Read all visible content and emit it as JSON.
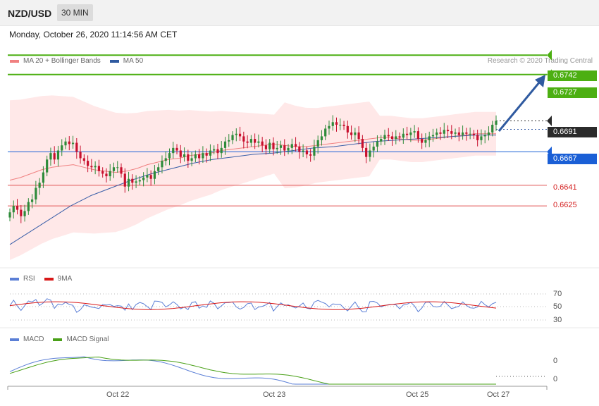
{
  "header": {
    "symbol": "NZD/USD",
    "timeframe": "30 MIN"
  },
  "datetime": "Monday, October 26, 2020 11:14:56 AM CET",
  "copyright": "Research © 2020 Trading Central",
  "colors": {
    "bull": "#2e8b3a",
    "bear": "#c8102e",
    "ma20": "#f08080",
    "bands_fill": "#ffe4e4",
    "ma50": "#3a5fa8",
    "resistance": "#4caf12",
    "pivot": "#1a5fd6",
    "support": "#e05555",
    "last": "#2b2b2b",
    "arrow": "#2f5aa0",
    "rsi": "#5b7fd6",
    "rsi_ma": "#d81818",
    "macd": "#5b7fd6",
    "macd_signal": "#49a017"
  },
  "legends": {
    "price": [
      {
        "label": "MA 20 + Bollinger Bands",
        "color": "#f08080"
      },
      {
        "label": "MA 50",
        "color": "#2f5aa0"
      }
    ],
    "rsi": [
      {
        "label": "RSI",
        "color": "#5b7fd6"
      },
      {
        "label": "9MA",
        "color": "#d81818"
      }
    ],
    "macd": [
      {
        "label": "MACD",
        "color": "#5b7fd6"
      },
      {
        "label": "MACD Signal",
        "color": "#49a017"
      }
    ]
  },
  "levels": {
    "r2": "0.6742",
    "r1": "0.6727",
    "last": "0.6691",
    "pivot": "0.6667",
    "s1": "0.6641",
    "s2": "0.6625"
  },
  "x_labels": [
    "Oct 22",
    "Oct 23",
    "Oct 25",
    "Oct 27"
  ],
  "rsi_labels": [
    "70",
    "50",
    "30"
  ],
  "macd_labels": [
    "0",
    "0"
  ],
  "chart_data": {
    "type": "candlestick",
    "title": "NZD/USD",
    "timeframe": "30 MIN",
    "y_range": [
      0.6578,
      0.6752
    ],
    "levels": {
      "resistance": [
        0.6742,
        0.6727
      ],
      "last": 0.6691,
      "pivot": 0.6667,
      "support": [
        0.6641,
        0.6625
      ]
    },
    "close": [
      0.662,
      0.6625,
      0.6622,
      0.6617,
      0.6621,
      0.6628,
      0.663,
      0.6639,
      0.6643,
      0.6651,
      0.6661,
      0.6666,
      0.6661,
      0.6668,
      0.6672,
      0.6675,
      0.6673,
      0.6674,
      0.6667,
      0.6662,
      0.666,
      0.6656,
      0.6655,
      0.6656,
      0.6652,
      0.665,
      0.6648,
      0.6652,
      0.6655,
      0.6655,
      0.665,
      0.664,
      0.6646,
      0.6643,
      0.6644,
      0.6645,
      0.6647,
      0.6649,
      0.6646,
      0.6652,
      0.6655,
      0.666,
      0.6662,
      0.6666,
      0.667,
      0.6668,
      0.6663,
      0.6665,
      0.666,
      0.6662,
      0.6665,
      0.6662,
      0.6666,
      0.6664,
      0.6668,
      0.6669,
      0.6666,
      0.667,
      0.6675,
      0.6676,
      0.668,
      0.6681,
      0.6679,
      0.6675,
      0.6674,
      0.6677,
      0.6674,
      0.6675,
      0.6672,
      0.6669,
      0.6674,
      0.6669,
      0.667,
      0.6672,
      0.6668,
      0.667,
      0.6673,
      0.6671,
      0.6667,
      0.6668,
      0.6665,
      0.6664,
      0.6671,
      0.6676,
      0.6679,
      0.6685,
      0.6687,
      0.669,
      0.6688,
      0.6688,
      0.6687,
      0.6682,
      0.668,
      0.6682,
      0.6677,
      0.667,
      0.6663,
      0.6668,
      0.6671,
      0.6675,
      0.6677,
      0.668,
      0.6679,
      0.6677,
      0.6679,
      0.6678,
      0.6681,
      0.668,
      0.6682,
      0.6683,
      0.6677,
      0.6674,
      0.6676,
      0.6679,
      0.668,
      0.6682,
      0.6681,
      0.6684,
      0.6683,
      0.6681,
      0.6682,
      0.668,
      0.6682,
      0.6681,
      0.6681,
      0.668,
      0.6676,
      0.6679,
      0.668,
      0.6682,
      0.6688,
      0.6691
    ],
    "ma20": [
      0.6645,
      0.6647,
      0.665,
      0.6653,
      0.6655,
      0.6656,
      0.6657,
      0.6655,
      0.6653,
      0.6652,
      0.6651,
      0.6652,
      0.6654,
      0.6657,
      0.6659,
      0.6661,
      0.6662,
      0.6664,
      0.6665,
      0.6666,
      0.6668,
      0.6669,
      0.667,
      0.6671,
      0.6672,
      0.6673,
      0.6672,
      0.6671,
      0.6671,
      0.6672,
      0.6673,
      0.6674,
      0.6675,
      0.6676,
      0.6677,
      0.6678,
      0.6678,
      0.6677,
      0.6676,
      0.6676,
      0.6677,
      0.6678,
      0.6679,
      0.668,
      0.6681,
      0.6681,
      0.6681
    ],
    "ma50": [
      0.6595,
      0.6605,
      0.6615,
      0.6625,
      0.6633,
      0.6639,
      0.6645,
      0.665,
      0.6654,
      0.6658,
      0.6661,
      0.6663,
      0.6665,
      0.6666,
      0.6668,
      0.667,
      0.6671,
      0.6673,
      0.6675,
      0.6676,
      0.6677,
      0.6678,
      0.6679,
      0.668,
      0.668
    ]
  }
}
